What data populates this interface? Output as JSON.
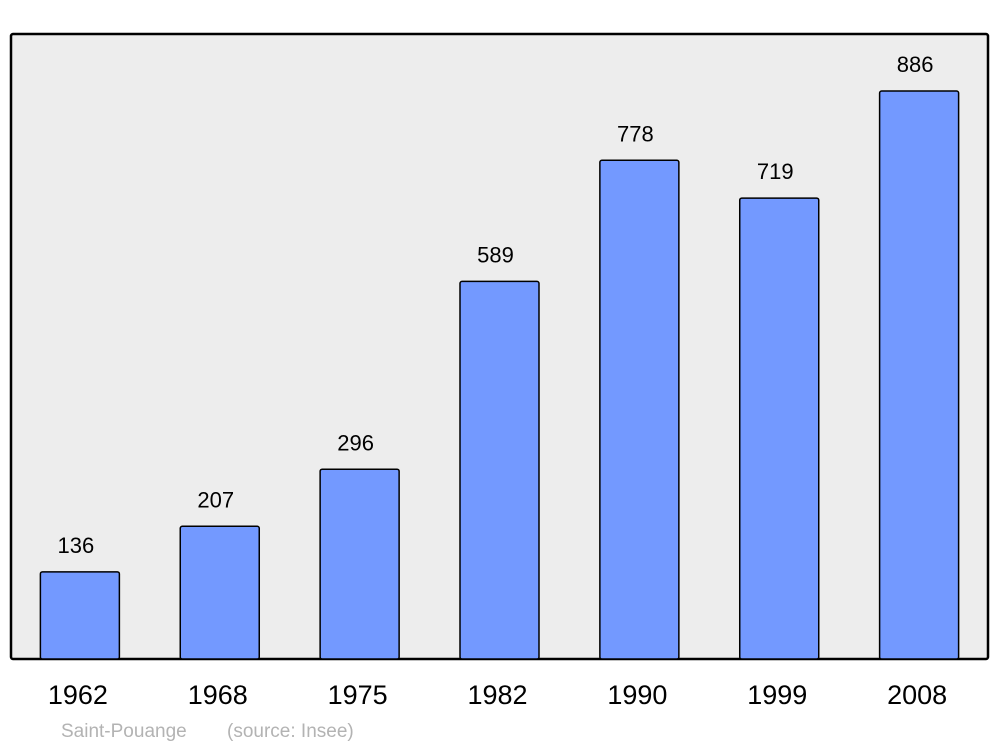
{
  "chart_data": {
    "type": "bar",
    "title": "",
    "xlabel": "",
    "ylabel": "",
    "categories": [
      "1962",
      "1968",
      "1975",
      "1982",
      "1990",
      "1999",
      "2008"
    ],
    "values": [
      136,
      207,
      296,
      589,
      778,
      719,
      886
    ],
    "ylim": [
      0,
      975
    ],
    "grid": false,
    "data_labels": true,
    "colors": {
      "bar": "#7399ff",
      "background": "#ededed",
      "frame": "#000000",
      "footer": "#b3b3b3"
    }
  },
  "footer": {
    "place": "Saint-Pouange",
    "source": "(source: Insee)"
  }
}
